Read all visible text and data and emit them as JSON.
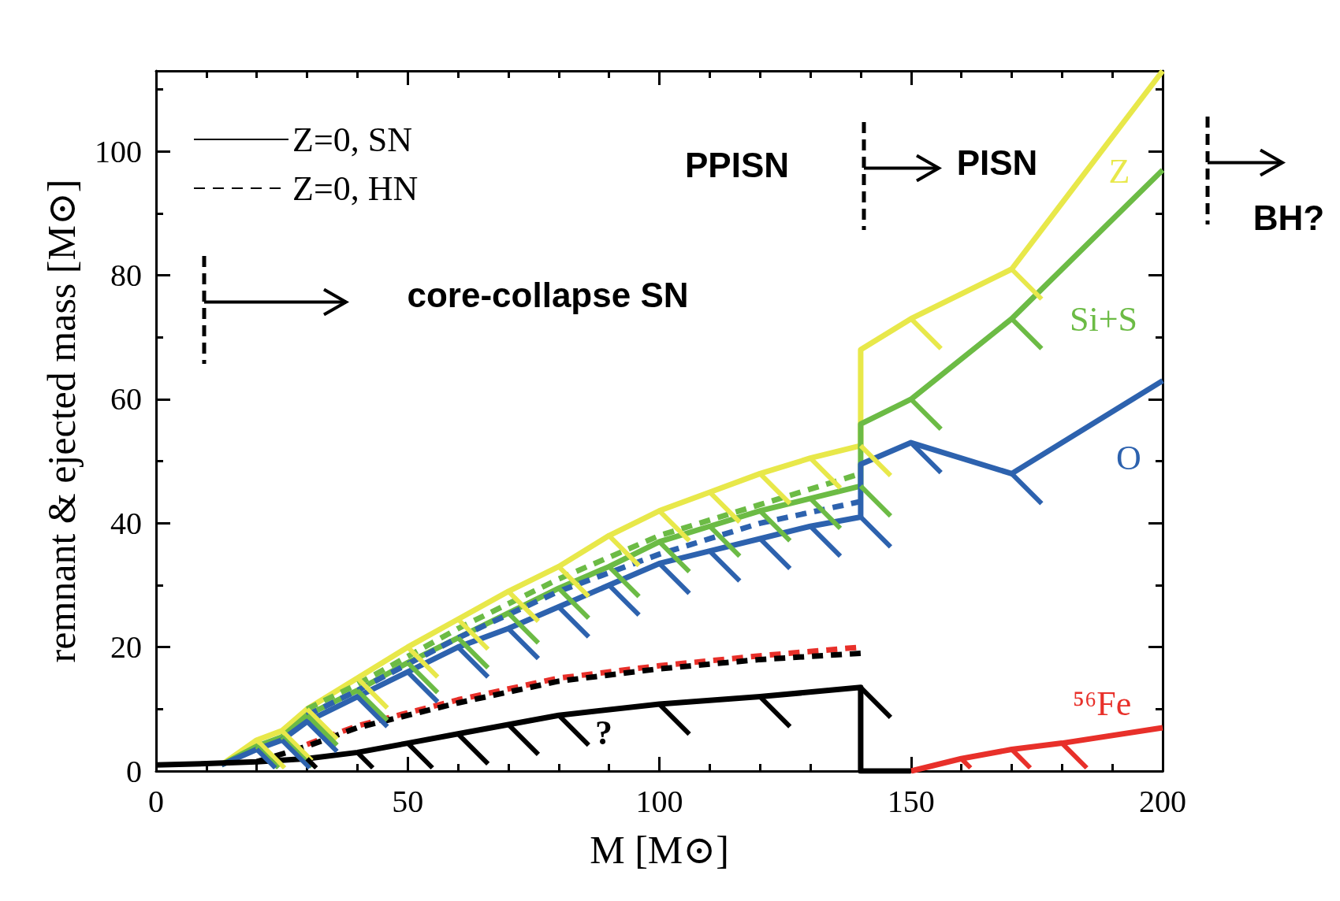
{
  "chart_data": {
    "type": "line",
    "xlabel": "M [M⊙]",
    "ylabel": "remnant & ejected mass [M⊙]",
    "xlim": [
      0,
      200
    ],
    "xticks": [
      0,
      50,
      100,
      150,
      200
    ],
    "ylim": [
      0,
      113
    ],
    "yticks": [
      0,
      20,
      40,
      60,
      80,
      100
    ],
    "grid": false,
    "legend": "top left",
    "marker": "none",
    "series": [
      {
        "color": "#e8e84a",
        "line_style": "solid",
        "x": [
          13,
          20,
          25,
          30,
          40,
          50,
          60,
          70,
          80,
          90,
          100,
          110,
          120,
          130,
          140,
          140,
          150,
          170,
          200
        ],
        "values": [
          1,
          5,
          6.5,
          10,
          15,
          20,
          24.5,
          29,
          33,
          38,
          42,
          45,
          48,
          50.5,
          52.5,
          68,
          73,
          81,
          113
        ]
      },
      {
        "color": "#6cbb45",
        "line_style": "solid",
        "x": [
          13,
          20,
          25,
          30,
          40,
          50,
          60,
          70,
          80,
          90,
          100,
          110,
          120,
          130,
          140,
          140,
          150,
          170,
          200
        ],
        "values": [
          1,
          4,
          5.5,
          9,
          13,
          17.5,
          21.5,
          25.5,
          29.5,
          33,
          37,
          39.5,
          42,
          44,
          46,
          56,
          60,
          73,
          97
        ]
      },
      {
        "color": "#2d62ae",
        "line_style": "solid",
        "x": [
          13,
          20,
          25,
          30,
          40,
          50,
          60,
          70,
          80,
          90,
          100,
          110,
          120,
          130,
          140,
          140,
          150,
          170,
          200
        ],
        "values": [
          1,
          3.5,
          5,
          8,
          12,
          16,
          20,
          23,
          26.5,
          30,
          33.5,
          35.5,
          37.5,
          39.5,
          41,
          49.5,
          53,
          48,
          63
        ]
      },
      {
        "color": "#6cbb45",
        "line_style": "dashed",
        "x": [
          30,
          40,
          60,
          80,
          100,
          120,
          140
        ],
        "values": [
          10,
          14,
          23,
          31,
          38,
          43,
          48
        ]
      },
      {
        "color": "#2d62ae",
        "line_style": "dashed",
        "x": [
          30,
          40,
          60,
          80,
          100,
          120,
          140
        ],
        "values": [
          9,
          13,
          21.5,
          29,
          35,
          40,
          43.5
        ]
      },
      {
        "color": "#e8302a",
        "line_style": "dashed",
        "x": [
          30,
          40,
          60,
          80,
          100,
          120,
          140
        ],
        "values": [
          4.3,
          7.3,
          11.5,
          15,
          17,
          18.6,
          20
        ]
      },
      {
        "name": "Z=0, SN",
        "color": "#000000",
        "line_style": "solid",
        "x": [
          0,
          10,
          20,
          30,
          40,
          50,
          60,
          70,
          80,
          100,
          120,
          140,
          140,
          150
        ],
        "values": [
          1,
          1.2,
          1.5,
          2,
          3,
          4.5,
          6,
          7.5,
          9,
          10.8,
          12,
          13.5,
          0,
          0
        ]
      },
      {
        "name": "Z=0, HN",
        "color": "#000000",
        "line_style": "dashed",
        "x": [
          20,
          30,
          40,
          60,
          80,
          100,
          120,
          140
        ],
        "values": [
          1.5,
          4,
          7,
          11,
          14.5,
          16.5,
          18,
          19
        ]
      },
      {
        "color": "#e8302a",
        "line_style": "solid",
        "x": [
          150,
          160,
          170,
          180,
          200
        ],
        "values": [
          0,
          2,
          3.5,
          4.5,
          7
        ]
      }
    ],
    "annotations": [
      "core-collapse SN",
      "PPISN",
      "PISN",
      "BH?",
      "?",
      "Z",
      "Si+S",
      "O",
      "⁵⁶Fe"
    ]
  }
}
